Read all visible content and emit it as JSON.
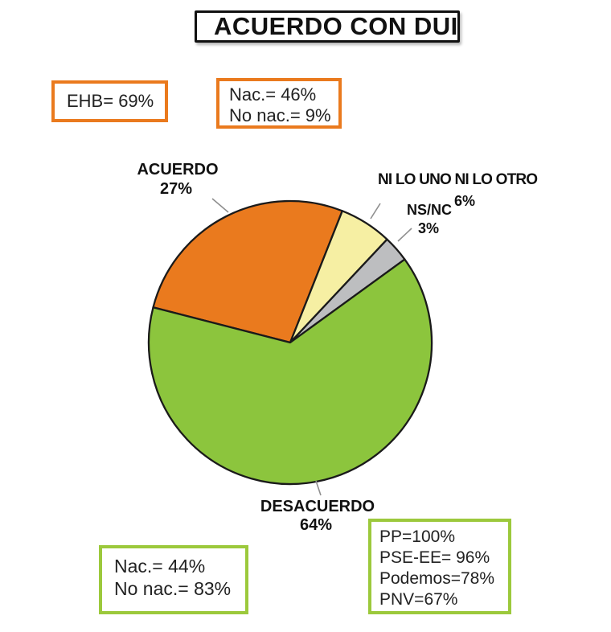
{
  "title": "ACUERDO CON DUI",
  "colors": {
    "orange_accent": "#EA7A1E",
    "green_accent": "#9CC93C",
    "slice_outline": "#1a1a1a",
    "leader_line": "#8f8f8f"
  },
  "annotations": {
    "ehb_box": {
      "lines": [
        "EHB= 69%"
      ]
    },
    "nac_top_box": {
      "lines": [
        "Nac.= 46%",
        "No nac.= 9%"
      ]
    },
    "nac_bottom_box": {
      "lines": [
        "Nac.= 44%",
        "No nac.= 83%"
      ]
    },
    "parties_box": {
      "lines": [
        "PP=100%",
        "PSE-EE= 96%",
        "Podemos=78%",
        "PNV=67%"
      ]
    }
  },
  "chart_data": {
    "type": "pie",
    "title": "ACUERDO CON DUI",
    "legend": "none",
    "start_angle_deg": 165.6,
    "direction": "clockwise",
    "slices": [
      {
        "label": "ACUERDO",
        "value": 27,
        "pct_label": "27%",
        "color": "#EA7A1E"
      },
      {
        "label": "NI LO UNO NI LO OTRO",
        "value": 6,
        "pct_label": "6%",
        "color": "#F6EFA3"
      },
      {
        "label": "NS/NC",
        "value": 3,
        "pct_label": "3%",
        "color": "#BDBEC0"
      },
      {
        "label": "DESACUERDO",
        "value": 64,
        "pct_label": "64%",
        "color": "#8CC53D"
      }
    ]
  }
}
